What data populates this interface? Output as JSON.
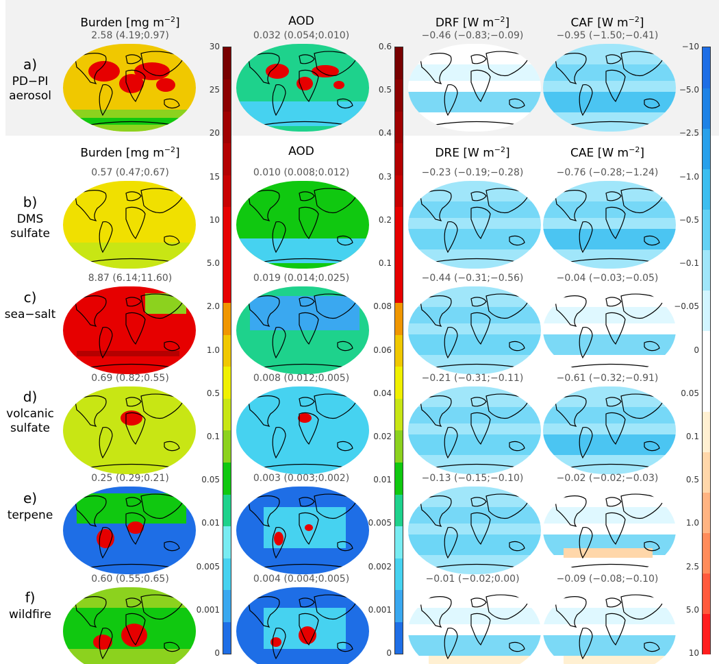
{
  "headers": {
    "top": {
      "burden": {
        "name": "Burden",
        "unit_prefix": "[mg m",
        "unit_exp": "−2",
        "unit_suffix": "]"
      },
      "aod": {
        "name": "AOD"
      },
      "drf": {
        "name": "DRF",
        "unit_prefix": "[W m",
        "unit_exp": "−2",
        "unit_suffix": "]"
      },
      "caf": {
        "name": "CAF",
        "unit_prefix": "[W m",
        "unit_exp": "−2",
        "unit_suffix": "]"
      }
    },
    "lower": {
      "burden": {
        "name": "Burden",
        "unit_prefix": "[mg m",
        "unit_exp": "−2",
        "unit_suffix": "]"
      },
      "aod": {
        "name": "AOD"
      },
      "dre": {
        "name": "DRE",
        "unit_prefix": "[W m",
        "unit_exp": "−2",
        "unit_suffix": "]"
      },
      "cae": {
        "name": "CAE",
        "unit_prefix": "[W m",
        "unit_exp": "−2",
        "unit_suffix": "]"
      }
    }
  },
  "rows": [
    {
      "letter": "a)",
      "line1": "PD−PI",
      "line2": "aerosol",
      "burden": "2.58 (4.19;0.97)",
      "aod": "0.032 (0.054;0.010)",
      "rad1": "−0.46 (−0.83;−0.09)",
      "rad2": "−0.95 (−1.50;−0.41)"
    },
    {
      "letter": "b)",
      "line1": "DMS",
      "line2": "sulfate",
      "burden": "0.57 (0.47;0.67)",
      "aod": "0.010 (0.008;0.012)",
      "rad1": "−0.23 (−0.19;−0.28)",
      "rad2": "−0.76 (−0.28;−1.24)"
    },
    {
      "letter": "c)",
      "line1": "sea−salt",
      "line2": "",
      "burden": "8.87 (6.14;11.60)",
      "aod": "0.019 (0.014;0.025)",
      "rad1": "−0.44 (−0.31;−0.56)",
      "rad2": "−0.04 (−0.03;−0.05)"
    },
    {
      "letter": "d)",
      "line1": "volcanic",
      "line2": "sulfate",
      "burden": "0.69 (0.82;0.55)",
      "aod": "0.008 (0.012;0.005)",
      "rad1": "−0.21 (−0.31;−0.11)",
      "rad2": "−0.61 (−0.32;−0.91)"
    },
    {
      "letter": "e)",
      "line1": "terpene",
      "line2": "",
      "burden": "0.25 (0.29;0.21)",
      "aod": "0.003 (0.003;0.002)",
      "rad1": "−0.13 (−0.15;−0.10)",
      "rad2": "−0.02 (−0.02;−0.03)"
    },
    {
      "letter": "f)",
      "line1": "wildfire",
      "line2": "",
      "burden": "0.60 (0.55;0.65)",
      "aod": "0.004 (0.004;0.005)",
      "rad1": "−0.01 (−0.02;0.00)",
      "rad2": "−0.09 (−0.08;−0.10)"
    }
  ],
  "colorbars": {
    "burden": {
      "ticks": [
        "0",
        "0.001",
        "0.005",
        "0.01",
        "0.05",
        "0.1",
        "0.5",
        "1.0",
        "2.0",
        "5.0",
        "10",
        "15",
        "20",
        "25",
        "30"
      ],
      "colors": [
        "#1e6ee6",
        "#3aa8f0",
        "#46d2f0",
        "#78ecf2",
        "#1ed28c",
        "#10c810",
        "#8cd21e",
        "#c8e614",
        "#f0f000",
        "#f0c800",
        "#f09600",
        "#e60000",
        "#e60000",
        "#e60000",
        "#c80000",
        "#b40000",
        "#a00000",
        "#8c0000",
        "#780000"
      ]
    },
    "aod": {
      "ticks": [
        "0",
        "0.001",
        "0.002",
        "0.005",
        "0.01",
        "0.02",
        "0.04",
        "0.06",
        "0.08",
        "0.1",
        "0.2",
        "0.3",
        "0.4",
        "0.5",
        "0.6"
      ],
      "colors": [
        "#1e6ee6",
        "#3aa8f0",
        "#46d2f0",
        "#78ecf2",
        "#1ed28c",
        "#10c810",
        "#8cd21e",
        "#c8e614",
        "#f0f000",
        "#f0c800",
        "#f09600",
        "#e60000",
        "#e60000",
        "#e60000",
        "#c80000",
        "#b40000",
        "#a00000",
        "#8c0000",
        "#780000"
      ]
    },
    "radiative": {
      "ticks": [
        "10",
        "5.0",
        "2.5",
        "1.0",
        "0.5",
        "0.1",
        "0.05",
        "0",
        "−0.05",
        "−0.1",
        "−0.5",
        "−1.0",
        "−2.5",
        "−5.0",
        "−10"
      ],
      "colors": [
        "#ff1e1e",
        "#ff5a3c",
        "#ff8c5a",
        "#ffb482",
        "#ffd7aa",
        "#fff0d2",
        "#ffffff",
        "#ffffff",
        "#d2f5ff",
        "#a0e6fa",
        "#64d2f5",
        "#3cbef0",
        "#28a0eb",
        "#1e82e6",
        "#1e6ee6"
      ]
    }
  },
  "colors": {
    "panel_band": "#f2f2f2",
    "coast": "#000000",
    "value_text": "#555555"
  }
}
